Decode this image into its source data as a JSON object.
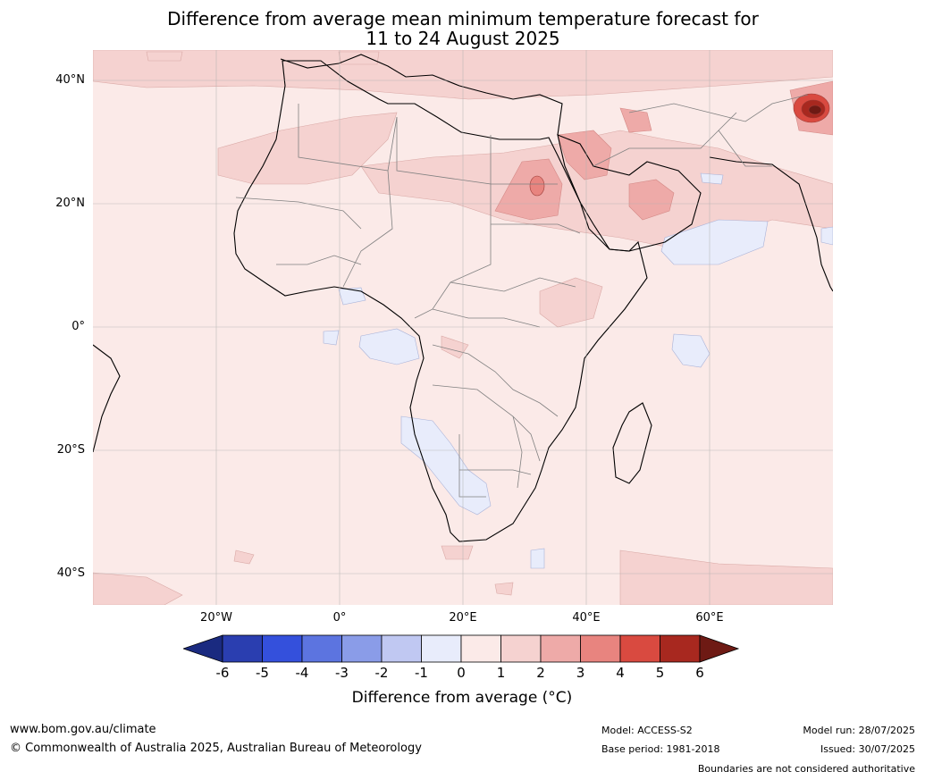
{
  "title": {
    "line1": "Difference from average mean minimum temperature forecast for",
    "line2": "11 to 24 August 2025"
  },
  "map": {
    "region": "Africa",
    "lon_range": [
      -40,
      80
    ],
    "lat_range": [
      -45,
      45
    ],
    "lat_ticks": [
      {
        "label": "40°N",
        "value": 40
      },
      {
        "label": "20°N",
        "value": 20
      },
      {
        "label": "0°",
        "value": 0
      },
      {
        "label": "20°S",
        "value": -20
      },
      {
        "label": "40°S",
        "value": -40
      }
    ],
    "lon_ticks": [
      {
        "label": "20°W",
        "value": -20
      },
      {
        "label": "0°",
        "value": 0
      },
      {
        "label": "20°E",
        "value": 20
      },
      {
        "label": "40°E",
        "value": 40
      },
      {
        "label": "60°E",
        "value": 60
      }
    ],
    "gridlines": true
  },
  "colorbar": {
    "ticks": [
      "-6",
      "-5",
      "-4",
      "-3",
      "-2",
      "-1",
      "0",
      "1",
      "2",
      "3",
      "4",
      "5",
      "6"
    ],
    "colors": [
      "#1a2a80",
      "#2a3eb0",
      "#3450dc",
      "#5c74e0",
      "#8a9ce8",
      "#c0c8f2",
      "#e8ecfb",
      "#fbeae8",
      "#f5d2d0",
      "#eeaaa8",
      "#e8847f",
      "#d94a40",
      "#a8281f",
      "#6e1a14"
    ],
    "label": "Difference from average (°C)"
  },
  "footer": {
    "website": "www.bom.gov.au/climate",
    "copyright": "© Commonwealth of Australia 2025, Australian Bureau of Meteorology",
    "model": "Model: ACCESS-S2",
    "base_period": "Base period: 1981-2018",
    "model_run": "Model run: 28/07/2025",
    "issued": "Issued: 30/07/2025",
    "disclaimer": "Boundaries are not considered authoritative"
  }
}
